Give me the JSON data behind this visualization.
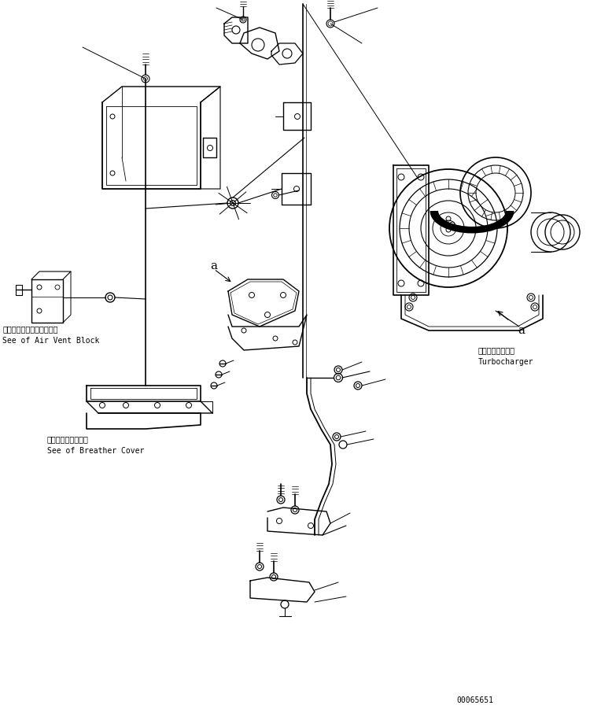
{
  "bg_color": "#ffffff",
  "line_color": "#000000",
  "text_color": "#000000",
  "label_air_vent_jp": "エアーベントブロック参照",
  "label_air_vent_en": "See of Air Vent Block",
  "label_breather_jp": "ブリーザカバー参照",
  "label_breather_en": "See of Breather Cover",
  "label_turbo_jp": "ターボチャージャ",
  "label_turbo_en": "Turbocharger",
  "label_a": "a",
  "part_number": "00065651",
  "font_size_jp": 7,
  "font_size_en": 7,
  "font_size_part": 7
}
